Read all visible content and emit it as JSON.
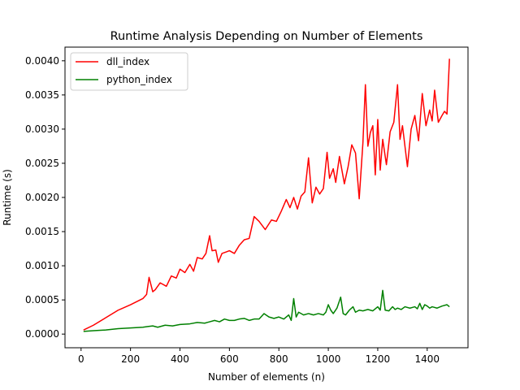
{
  "chart_data": {
    "type": "line",
    "title": "Runtime Analysis Depending on Number of Elements",
    "xlabel": "Number of elements (n)",
    "ylabel": "Runtime (s)",
    "xlim": [
      -65,
      1565
    ],
    "ylim": [
      -0.0002,
      0.0042
    ],
    "xticks": [
      0,
      200,
      400,
      600,
      800,
      1000,
      1200,
      1400
    ],
    "xtick_labels": [
      "0",
      "200",
      "400",
      "600",
      "800",
      "1000",
      "1200",
      "1400"
    ],
    "yticks": [
      0,
      0.0005,
      0.001,
      0.0015,
      0.002,
      0.0025,
      0.003,
      0.0035,
      0.004
    ],
    "ytick_labels": [
      "0.0000",
      "0.0005",
      "0.0010",
      "0.0015",
      "0.0020",
      "0.0025",
      "0.0030",
      "0.0035",
      "0.0040"
    ],
    "grid": false,
    "legend_position": "upper-left",
    "series": [
      {
        "name": "dll_index",
        "color": "#ff0000",
        "x": [
          10,
          50,
          100,
          150,
          200,
          250,
          265,
          275,
          290,
          300,
          320,
          345,
          365,
          385,
          400,
          420,
          440,
          455,
          470,
          490,
          505,
          520,
          530,
          545,
          555,
          570,
          585,
          600,
          620,
          640,
          660,
          680,
          700,
          720,
          745,
          770,
          790,
          810,
          830,
          845,
          860,
          875,
          890,
          905,
          920,
          935,
          950,
          965,
          980,
          995,
          1005,
          1020,
          1030,
          1045,
          1065,
          1080,
          1095,
          1110,
          1125,
          1140,
          1150,
          1160,
          1170,
          1180,
          1190,
          1200,
          1210,
          1220,
          1235,
          1250,
          1265,
          1280,
          1290,
          1300,
          1320,
          1335,
          1350,
          1365,
          1380,
          1395,
          1410,
          1420,
          1430,
          1445,
          1460,
          1470,
          1480,
          1490
        ],
        "y": [
          6e-05,
          0.00013,
          0.00024,
          0.00035,
          0.00043,
          0.00052,
          0.00058,
          0.00083,
          0.00062,
          0.00065,
          0.00075,
          0.0007,
          0.00085,
          0.00082,
          0.00095,
          0.0009,
          0.00102,
          0.00092,
          0.00112,
          0.0011,
          0.00118,
          0.00144,
          0.00122,
          0.00123,
          0.00105,
          0.00118,
          0.0012,
          0.00122,
          0.00118,
          0.0013,
          0.00138,
          0.0014,
          0.00172,
          0.00165,
          0.00153,
          0.00167,
          0.00165,
          0.0018,
          0.00197,
          0.00185,
          0.002,
          0.00183,
          0.00202,
          0.00208,
          0.00258,
          0.00192,
          0.00215,
          0.00205,
          0.00213,
          0.00266,
          0.00228,
          0.00242,
          0.00222,
          0.0026,
          0.0022,
          0.00245,
          0.00277,
          0.00265,
          0.00198,
          0.0028,
          0.00365,
          0.00275,
          0.00295,
          0.00305,
          0.00233,
          0.00314,
          0.0024,
          0.00285,
          0.00248,
          0.00296,
          0.0031,
          0.00365,
          0.00285,
          0.00305,
          0.00245,
          0.003,
          0.0032,
          0.00283,
          0.00352,
          0.00305,
          0.00328,
          0.00312,
          0.00357,
          0.0031,
          0.0032,
          0.00326,
          0.00322,
          0.00403
        ]
      },
      {
        "name": "python_index",
        "color": "#008000",
        "x": [
          10,
          50,
          100,
          150,
          200,
          250,
          270,
          290,
          310,
          340,
          370,
          400,
          440,
          470,
          500,
          520,
          540,
          560,
          580,
          600,
          620,
          640,
          660,
          680,
          700,
          720,
          740,
          760,
          780,
          800,
          820,
          840,
          850,
          860,
          870,
          880,
          900,
          920,
          940,
          960,
          980,
          990,
          1000,
          1010,
          1020,
          1035,
          1050,
          1060,
          1070,
          1085,
          1100,
          1110,
          1125,
          1140,
          1160,
          1180,
          1200,
          1210,
          1220,
          1230,
          1245,
          1260,
          1270,
          1280,
          1295,
          1310,
          1330,
          1350,
          1360,
          1370,
          1380,
          1390,
          1400,
          1410,
          1420,
          1440,
          1460,
          1480,
          1490
        ],
        "y": [
          4e-05,
          5e-05,
          6e-05,
          8e-05,
          9e-05,
          0.0001,
          0.00011,
          0.00012,
          0.0001,
          0.00013,
          0.00012,
          0.00014,
          0.00015,
          0.00017,
          0.00016,
          0.00018,
          0.0002,
          0.00018,
          0.00022,
          0.0002,
          0.0002,
          0.00022,
          0.00023,
          0.0002,
          0.00022,
          0.00022,
          0.0003,
          0.00025,
          0.00023,
          0.00025,
          0.00022,
          0.00028,
          0.0002,
          0.00052,
          0.00025,
          0.00032,
          0.00028,
          0.0003,
          0.00028,
          0.0003,
          0.00028,
          0.00032,
          0.00043,
          0.00035,
          0.0003,
          0.00038,
          0.00054,
          0.0003,
          0.00028,
          0.00035,
          0.0004,
          0.00032,
          0.00035,
          0.00034,
          0.00036,
          0.00034,
          0.0004,
          0.00035,
          0.00064,
          0.00035,
          0.00034,
          0.0004,
          0.00036,
          0.00038,
          0.00036,
          0.0004,
          0.00038,
          0.0004,
          0.00037,
          0.00045,
          0.00036,
          0.00043,
          0.00041,
          0.00038,
          0.0004,
          0.00038,
          0.00041,
          0.00043,
          0.0004
        ]
      }
    ]
  }
}
